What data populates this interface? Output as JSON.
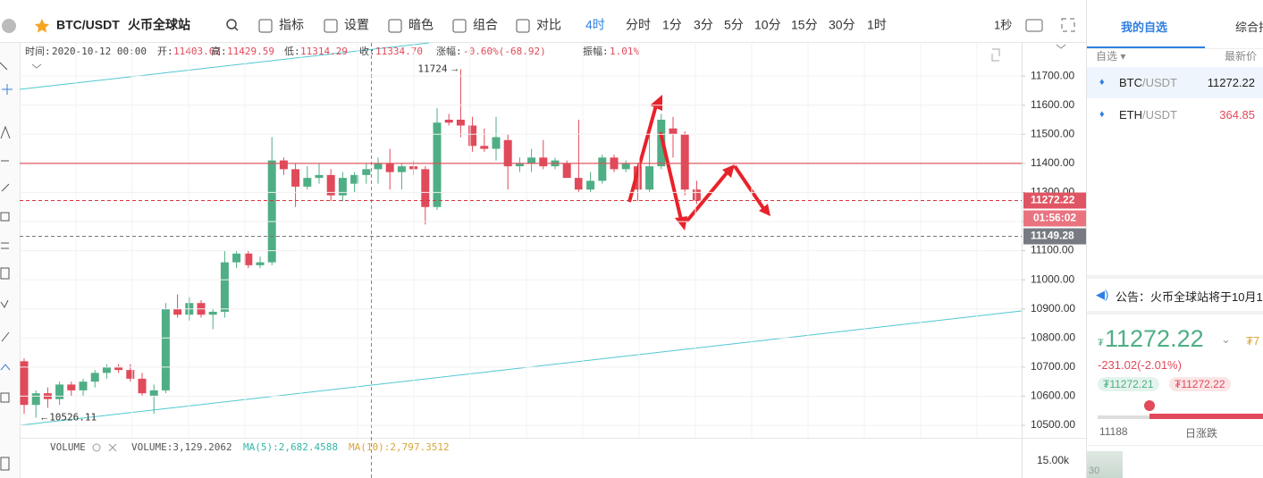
{
  "toolbar": {
    "symbol": "BTC/USDT",
    "exchange": "火币全球站",
    "tools": [
      "指标",
      "设置",
      "暗色",
      "组合",
      "对比"
    ],
    "intervals": [
      "4时",
      "分时",
      "1分",
      "3分",
      "5分",
      "10分",
      "15分",
      "30分",
      "1时"
    ],
    "speed": "1秒"
  },
  "info": [
    {
      "label": "时间:",
      "value": "2020-10-12 00:00"
    },
    {
      "label": "开:",
      "value": "11403.62"
    },
    {
      "label": "高:",
      "value": "11429.59"
    },
    {
      "label": "低:",
      "value": "11314.29"
    },
    {
      "label": "收:",
      "value": "11334.70"
    },
    {
      "label": "涨幅:",
      "value": "-0.60%(-68.92)"
    },
    {
      "label": "振幅:",
      "value": "1.01%"
    }
  ],
  "chart_data": {
    "type": "candlestick",
    "up_color": "#4fae85",
    "down_color": "#e04a5a",
    "grid": true,
    "ylim": [
      10457,
      11814
    ],
    "yticks": [
      {
        "value": 10500,
        "label": "10500.00"
      },
      {
        "value": 10600,
        "label": "10600.00"
      },
      {
        "value": 10700,
        "label": "10700.00"
      },
      {
        "value": 10800,
        "label": "10800.00"
      },
      {
        "value": 10900,
        "label": "10900.00"
      },
      {
        "value": 11000,
        "label": "11000.00"
      },
      {
        "value": 11100,
        "label": "11100.00"
      },
      {
        "value": 11200,
        "label": "11200.00"
      },
      {
        "value": 11300,
        "label": "11300.00"
      },
      {
        "value": 11400,
        "label": "11400.00"
      },
      {
        "value": 11500,
        "label": "11500.00"
      },
      {
        "value": 11600,
        "label": "11600.00"
      },
      {
        "value": 11700,
        "label": "11700.00"
      }
    ],
    "open": [
      10720,
      10570,
      10610,
      10590,
      10640,
      10620,
      10650,
      10680,
      10700,
      10690,
      10660,
      10600,
      10620,
      10900,
      10880,
      10920,
      10880,
      10890,
      11060,
      11090,
      11050,
      11060,
      11410,
      11380,
      11320,
      11350,
      11360,
      11290,
      11330,
      11360,
      11380,
      11400,
      11370,
      11390,
      11380,
      11250,
      11550,
      11550,
      11530,
      11460,
      11450,
      11480,
      11390,
      11400,
      11420,
      11390,
      11400,
      11350,
      11310,
      11340,
      11420,
      11380,
      11390,
      11310,
      11390,
      11520,
      11500,
      11310
    ],
    "high": [
      10730,
      10620,
      10630,
      10650,
      10650,
      10660,
      10690,
      10710,
      10710,
      10710,
      10680,
      10640,
      10920,
      10950,
      10940,
      10930,
      10900,
      11100,
      11100,
      11100,
      11080,
      11490,
      11420,
      11400,
      11390,
      11400,
      11380,
      11370,
      11370,
      11400,
      11420,
      11450,
      11400,
      11410,
      11390,
      11590,
      11570,
      11724,
      11560,
      11520,
      11560,
      11500,
      11420,
      11450,
      11480,
      11420,
      11410,
      11550,
      11370,
      11430,
      11430,
      11410,
      11400,
      11500,
      11570,
      11560,
      11510,
      11340
    ],
    "low": [
      10540,
      10526.11,
      10560,
      10570,
      10600,
      10600,
      10630,
      10660,
      10680,
      10650,
      10600,
      10540,
      10610,
      10870,
      10860,
      10870,
      10830,
      10870,
      11040,
      11040,
      11040,
      11050,
      11360,
      11250,
      11310,
      11330,
      11270,
      11270,
      11300,
      11330,
      11330,
      11310,
      11310,
      11360,
      11190,
      11240,
      11530,
      11490,
      11440,
      11440,
      11410,
      11310,
      11370,
      11370,
      11380,
      11380,
      11350,
      11300,
      11300,
      11330,
      11370,
      11370,
      11270,
      11300,
      11380,
      11420,
      11290,
      11260
    ],
    "close": [
      10570,
      10610,
      10590,
      10640,
      10620,
      10650,
      10680,
      10700,
      10690,
      10660,
      10610,
      10620,
      10900,
      10880,
      10920,
      10880,
      10890,
      11060,
      11090,
      11050,
      11060,
      11410,
      11380,
      11320,
      11350,
      11360,
      11290,
      11350,
      11360,
      11380,
      11400,
      11370,
      11390,
      11380,
      11250,
      11540,
      11540,
      11530,
      11460,
      11450,
      11490,
      11390,
      11400,
      11420,
      11390,
      11410,
      11350,
      11310,
      11340,
      11420,
      11380,
      11400,
      11310,
      11390,
      11550,
      11500,
      11310,
      11272.22
    ],
    "hlines": [
      {
        "value": 11400,
        "color": "#d9333f",
        "dash": false
      },
      {
        "value": 11272.22,
        "color": "#d9333f",
        "dash": true
      },
      {
        "value": 11149.28,
        "color": "#777",
        "dash": true
      }
    ],
    "countdown": "01:56:02",
    "high_marker": 11724,
    "low_marker": 10526.11
  },
  "volume": {
    "label": "VOLUME",
    "value_text": "VOLUME:3,129.2062",
    "ma5": "MA(5):2,682.4588",
    "ma10": "MA(10):2,797.3512",
    "tick": "15.00k"
  },
  "sidebar": {
    "tabs": [
      "我的自选",
      "综合排"
    ],
    "col1": "自选",
    "col2": "最新价",
    "rows": [
      {
        "base": "BTC",
        "quote": "/USDT",
        "price": "11272.22"
      },
      {
        "base": "ETH",
        "quote": "/USDT",
        "price": "364.85"
      }
    ],
    "notice": "公告：火币全球站将于10月1",
    "currency": "₮",
    "price": "11272.22",
    "change": "-231.02(-2.01%)",
    "bid": "₮11272.21",
    "ask": "₮11272.22",
    "low": "11188",
    "range_label": "日涨跌",
    "partial": "₮7",
    "depth": "30"
  }
}
